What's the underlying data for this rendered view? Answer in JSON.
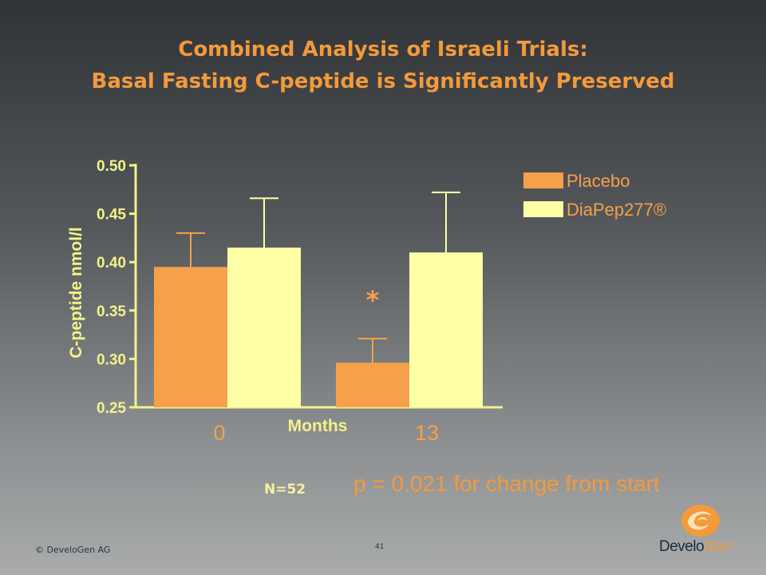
{
  "slide": {
    "title_line1": "Combined Analysis of Israeli Trials:",
    "title_line2": "Basal Fasting C-peptide is Significantly Preserved",
    "n_label": "N=52",
    "p_value_text": "p = 0.021 for change from start",
    "copyright": "© DeveloGen AG",
    "page_number": "41",
    "logo": {
      "part1": "Develo",
      "part2": "Gen",
      "icon": "develogen-swirl-icon"
    }
  },
  "colors": {
    "placebo": "#f7a04a",
    "diapep": "#ffffa6",
    "axis": "#f2f28a",
    "title": "#f39a3c"
  },
  "chart_data": {
    "type": "bar",
    "categories": [
      "0",
      "13"
    ],
    "xlabel": "Months",
    "ylabel": "C-peptide nmol/l",
    "ylim": [
      0.25,
      0.5
    ],
    "yticks": [
      "0.25",
      "0.30",
      "0.35",
      "0.40",
      "0.45",
      "0.50"
    ],
    "series": [
      {
        "name": "Placebo",
        "values": [
          0.395,
          0.296
        ],
        "error": [
          0.035,
          0.025
        ]
      },
      {
        "name": "DiaPep277®",
        "values": [
          0.415,
          0.41
        ],
        "error": [
          0.051,
          0.062
        ]
      }
    ],
    "annotations": [
      {
        "text": "*",
        "category": "13"
      }
    ],
    "legend": "top-right"
  }
}
